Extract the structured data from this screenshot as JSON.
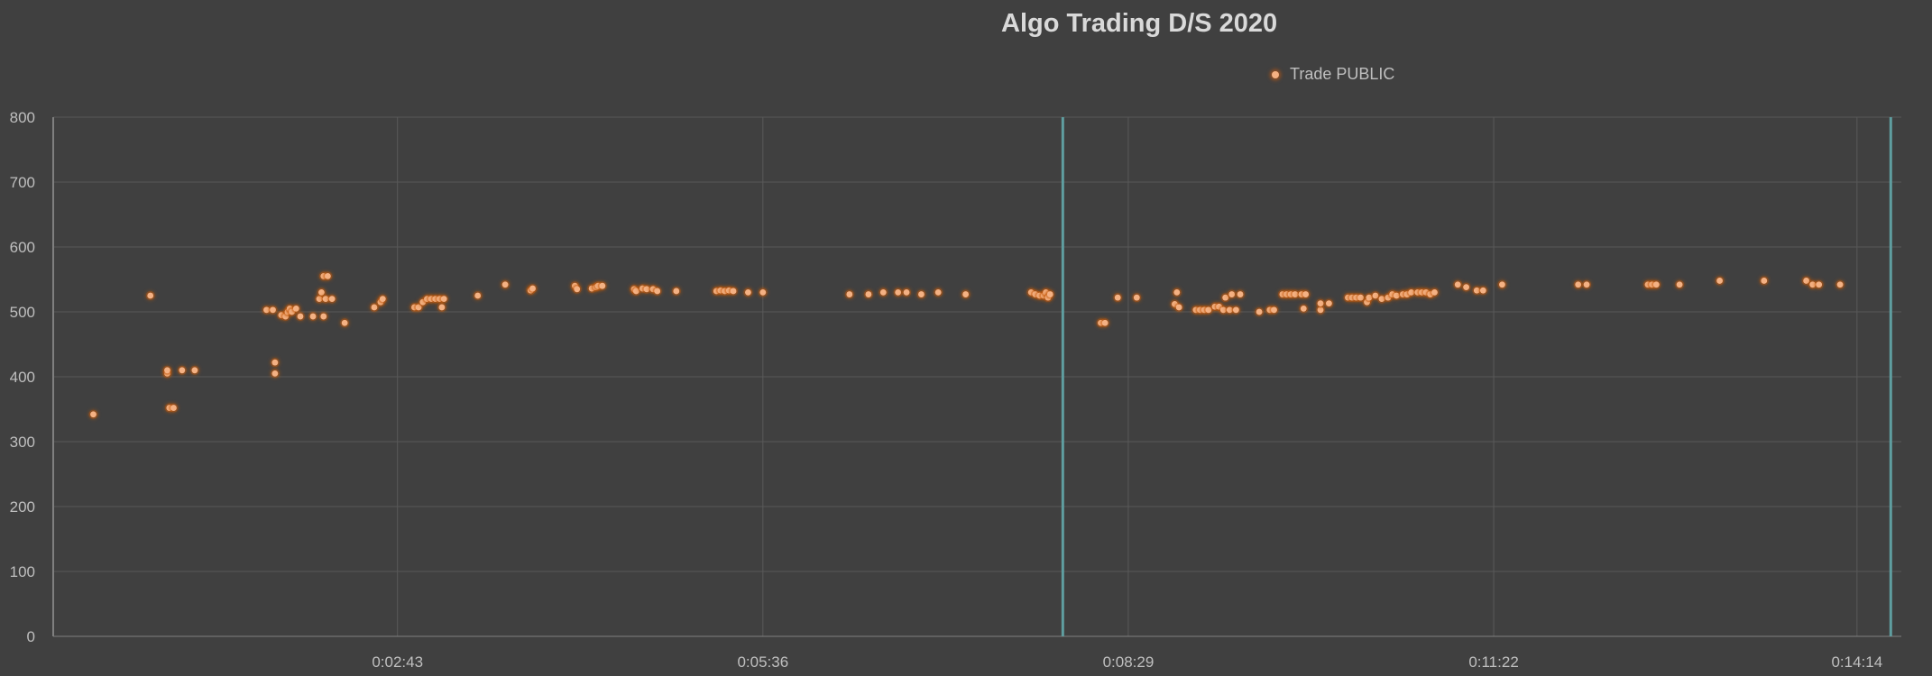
{
  "chart_data": {
    "type": "scatter",
    "title": "Algo Trading D/S 2020",
    "xlabel": "",
    "ylabel": "",
    "ylim": [
      0,
      800
    ],
    "xlim_seconds": [
      0,
      875
    ],
    "y_ticks": [
      0,
      100,
      200,
      300,
      400,
      500,
      600,
      700,
      800
    ],
    "x_ticks": [
      {
        "label": "0:02:43",
        "seconds": 163
      },
      {
        "label": "0:05:36",
        "seconds": 336
      },
      {
        "label": "0:08:29",
        "seconds": 509
      },
      {
        "label": "0:11:22",
        "seconds": 682
      },
      {
        "label": "0:14:14",
        "seconds": 854
      }
    ],
    "grid": true,
    "legend_position": "top",
    "colors": {
      "background": "#404040",
      "marker": "#f4b183",
      "marker_glow": "#c55a11",
      "grid": "#595959",
      "vline": "#5f9ea0"
    },
    "vertical_lines_seconds": [
      478,
      870
    ],
    "series": [
      {
        "name": "Trade PUBLIC",
        "points": [
          [
            19,
            342
          ],
          [
            46,
            525
          ],
          [
            54,
            405
          ],
          [
            54,
            410
          ],
          [
            55,
            352
          ],
          [
            57,
            352
          ],
          [
            61,
            410
          ],
          [
            67,
            410
          ],
          [
            101,
            503
          ],
          [
            104,
            503
          ],
          [
            105,
            422
          ],
          [
            105,
            405
          ],
          [
            108,
            495
          ],
          [
            110,
            493
          ],
          [
            111,
            500
          ],
          [
            112,
            505
          ],
          [
            113,
            500
          ],
          [
            115,
            505
          ],
          [
            117,
            493
          ],
          [
            123,
            493
          ],
          [
            126,
            520
          ],
          [
            127,
            530
          ],
          [
            128,
            555
          ],
          [
            129,
            520
          ],
          [
            130,
            555
          ],
          [
            132,
            520
          ],
          [
            128,
            493
          ],
          [
            138,
            483
          ],
          [
            152,
            507
          ],
          [
            155,
            515
          ],
          [
            156,
            520
          ],
          [
            171,
            507
          ],
          [
            173,
            507
          ],
          [
            175,
            515
          ],
          [
            177,
            520
          ],
          [
            179,
            520
          ],
          [
            181,
            520
          ],
          [
            183,
            520
          ],
          [
            185,
            520
          ],
          [
            184,
            507
          ],
          [
            201,
            525
          ],
          [
            214,
            542
          ],
          [
            226,
            533
          ],
          [
            227,
            536
          ],
          [
            247,
            540
          ],
          [
            248,
            535
          ],
          [
            255,
            536
          ],
          [
            257,
            538
          ],
          [
            258,
            540
          ],
          [
            260,
            540
          ],
          [
            275,
            535
          ],
          [
            276,
            532
          ],
          [
            279,
            536
          ],
          [
            281,
            535
          ],
          [
            284,
            535
          ],
          [
            286,
            532
          ],
          [
            295,
            532
          ],
          [
            314,
            532
          ],
          [
            316,
            533
          ],
          [
            318,
            532
          ],
          [
            320,
            533
          ],
          [
            322,
            532
          ],
          [
            329,
            530
          ],
          [
            336,
            530
          ],
          [
            377,
            527
          ],
          [
            386,
            527
          ],
          [
            393,
            530
          ],
          [
            400,
            530
          ],
          [
            404,
            530
          ],
          [
            411,
            527
          ],
          [
            419,
            530
          ],
          [
            432,
            527
          ],
          [
            463,
            530
          ],
          [
            465,
            527
          ],
          [
            467,
            525
          ],
          [
            469,
            525
          ],
          [
            470,
            530
          ],
          [
            471,
            522
          ],
          [
            472,
            527
          ],
          [
            496,
            483
          ],
          [
            498,
            483
          ],
          [
            504,
            522
          ],
          [
            513,
            522
          ],
          [
            531,
            512
          ],
          [
            532,
            530
          ],
          [
            533,
            507
          ],
          [
            541,
            503
          ],
          [
            543,
            503
          ],
          [
            545,
            503
          ],
          [
            547,
            503
          ],
          [
            550,
            508
          ],
          [
            552,
            508
          ],
          [
            554,
            503
          ],
          [
            555,
            522
          ],
          [
            557,
            503
          ],
          [
            558,
            527
          ],
          [
            560,
            503
          ],
          [
            562,
            527
          ],
          [
            571,
            500
          ],
          [
            576,
            503
          ],
          [
            578,
            503
          ],
          [
            582,
            527
          ],
          [
            584,
            527
          ],
          [
            586,
            527
          ],
          [
            588,
            527
          ],
          [
            591,
            527
          ],
          [
            593,
            527
          ],
          [
            592,
            505
          ],
          [
            600,
            503
          ],
          [
            600,
            513
          ],
          [
            604,
            513
          ],
          [
            613,
            522
          ],
          [
            615,
            522
          ],
          [
            617,
            522
          ],
          [
            619,
            522
          ],
          [
            622,
            515
          ],
          [
            623,
            522
          ],
          [
            626,
            525
          ],
          [
            629,
            520
          ],
          [
            632,
            522
          ],
          [
            634,
            527
          ],
          [
            636,
            525
          ],
          [
            639,
            527
          ],
          [
            641,
            527
          ],
          [
            643,
            530
          ],
          [
            646,
            530
          ],
          [
            648,
            530
          ],
          [
            650,
            530
          ],
          [
            652,
            527
          ],
          [
            654,
            530
          ],
          [
            665,
            542
          ],
          [
            669,
            538
          ],
          [
            674,
            533
          ],
          [
            677,
            533
          ],
          [
            686,
            542
          ],
          [
            722,
            542
          ],
          [
            726,
            542
          ],
          [
            755,
            542
          ],
          [
            757,
            542
          ],
          [
            759,
            542
          ],
          [
            770,
            542
          ],
          [
            789,
            548
          ],
          [
            810,
            548
          ],
          [
            830,
            548
          ],
          [
            833,
            542
          ],
          [
            836,
            542
          ],
          [
            846,
            542
          ]
        ]
      }
    ]
  }
}
